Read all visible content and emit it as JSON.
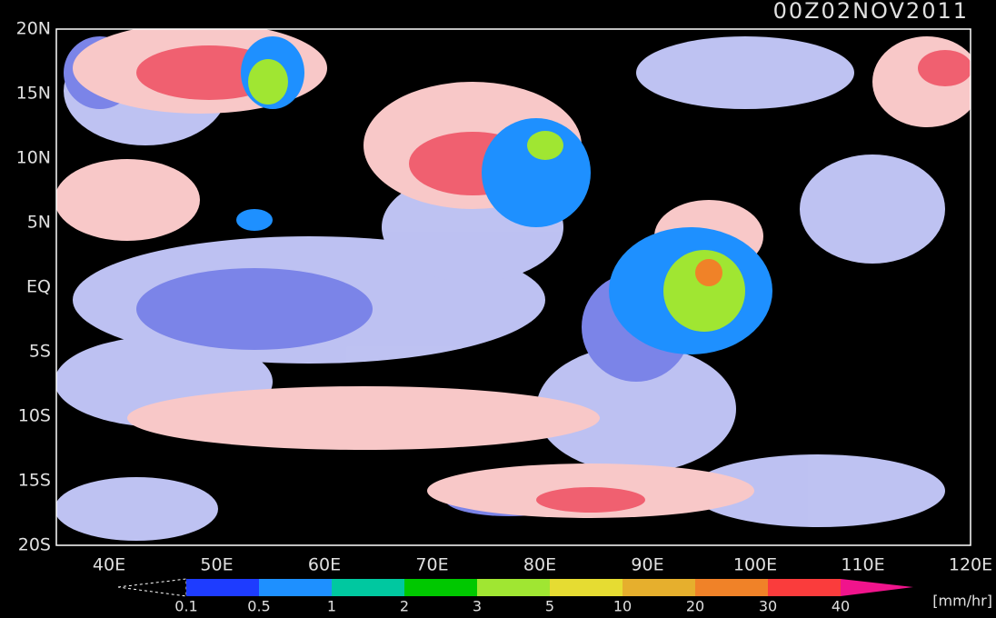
{
  "header": {
    "title": "00Z02NOV2011"
  },
  "latitude_labels": [
    "20N",
    "15N",
    "10N",
    "5N",
    "EQ",
    "5S",
    "10S",
    "15S",
    "20S"
  ],
  "longitude_labels": [
    "40E",
    "50E",
    "60E",
    "70E",
    "80E",
    "90E",
    "100E",
    "110E",
    "120E"
  ],
  "colorbar": {
    "labels": [
      "0.1",
      "0.5",
      "1",
      "2",
      "3",
      "5",
      "10",
      "20",
      "30",
      "40"
    ],
    "unit": "[mm/hr]"
  }
}
